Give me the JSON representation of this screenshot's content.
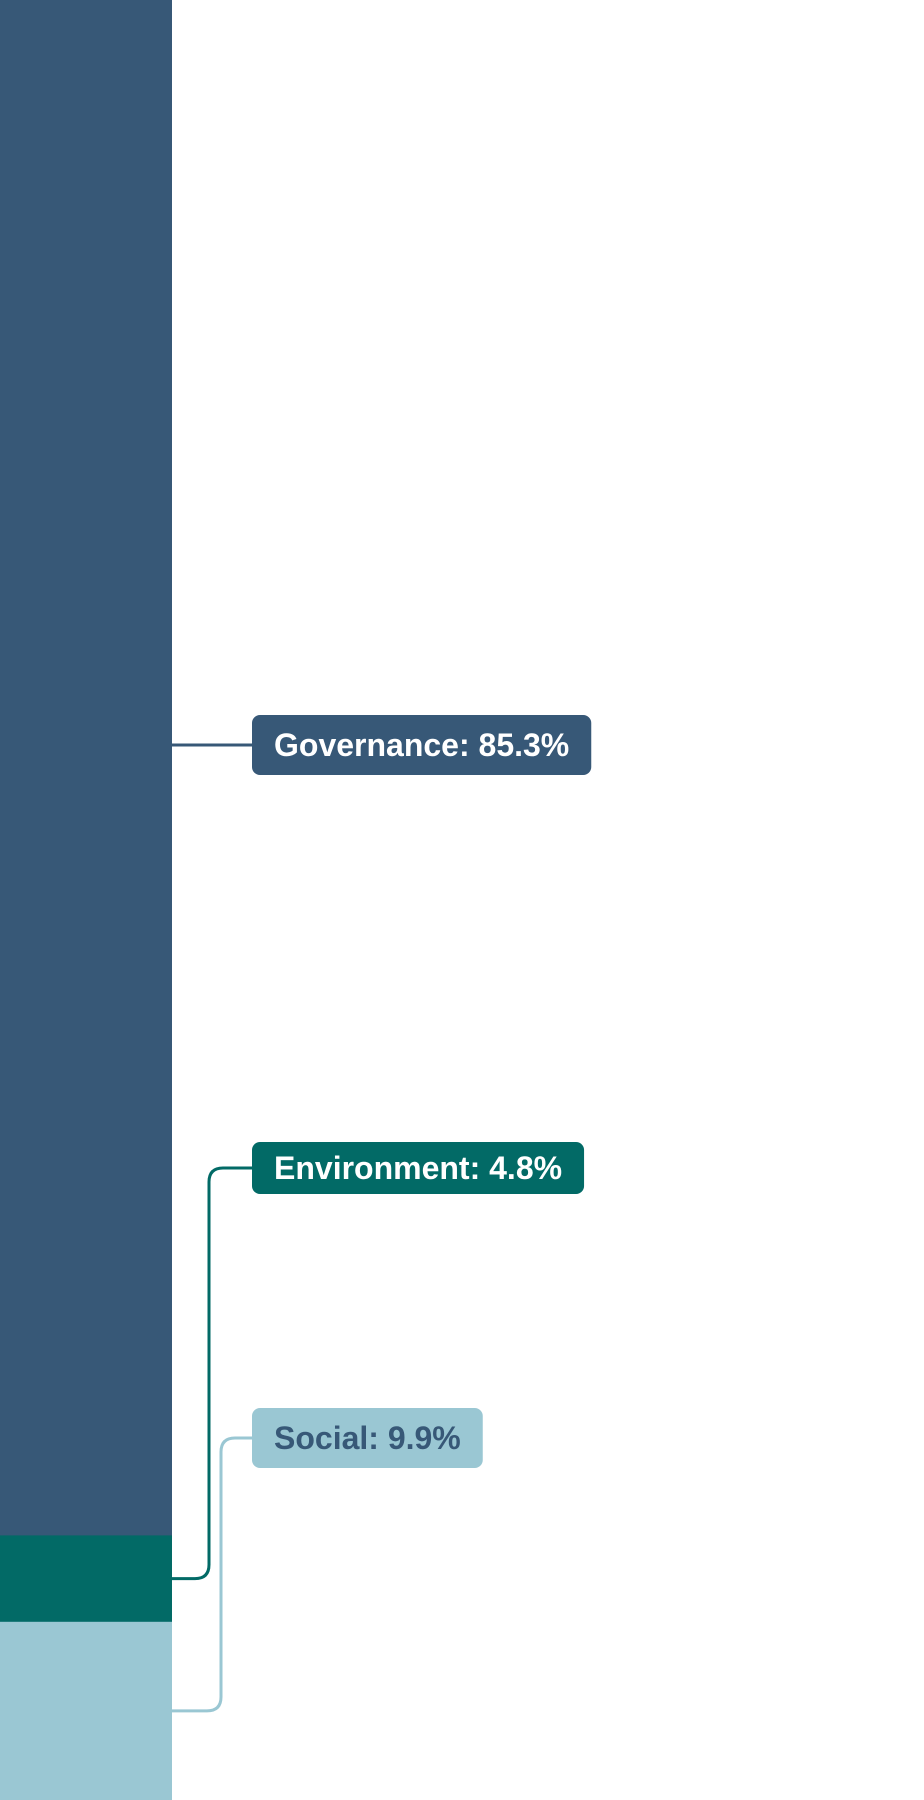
{
  "chart_data": {
    "type": "bar",
    "orientation": "stacked-vertical",
    "categories": [
      "Governance",
      "Environment",
      "Social"
    ],
    "values": [
      85.3,
      4.8,
      9.9
    ],
    "unit": "%",
    "labels": [
      "Governance: 85.3%",
      "Environment: 4.8%",
      "Social: 9.9%"
    ],
    "colors": [
      "#375877",
      "#026a66",
      "#9ac7d3"
    ],
    "label_text_colors": [
      "#ffffff",
      "#ffffff",
      "#375877"
    ],
    "stack_order": "top-to-bottom",
    "ylim": [
      0,
      100
    ],
    "grid": false,
    "title": "",
    "xlabel": "",
    "ylabel": ""
  }
}
